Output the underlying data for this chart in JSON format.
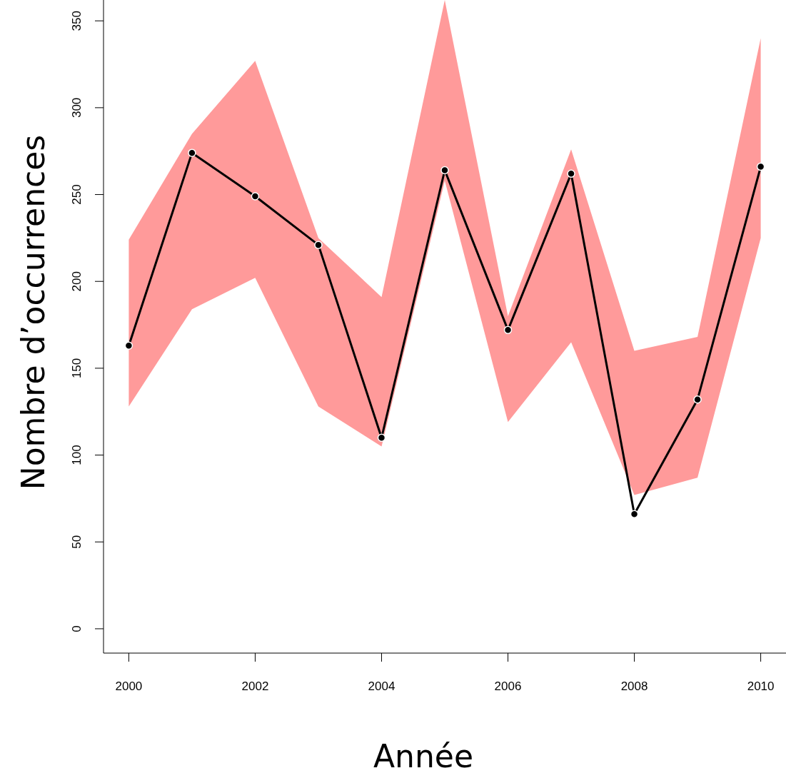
{
  "chart_data": {
    "type": "line",
    "xlabel": "Année",
    "ylabel": "Nombre d’occurrences",
    "x": [
      2000,
      2001,
      2002,
      2003,
      2004,
      2005,
      2006,
      2007,
      2008,
      2009,
      2010
    ],
    "series": [
      {
        "color": "#000000",
        "values": [
          163,
          274,
          249,
          221,
          110,
          264,
          172,
          262,
          66,
          132,
          266
        ],
        "lower": [
          128,
          184,
          202,
          128,
          105,
          258,
          119,
          165,
          77,
          87,
          225
        ],
        "upper": [
          224,
          285,
          327,
          225,
          191,
          362,
          180,
          276,
          160,
          168,
          340
        ]
      }
    ],
    "xlim": [
      1999.6,
      2010.4
    ],
    "ylim": [
      -14,
      362
    ],
    "xticks": [
      2000,
      2002,
      2004,
      2006,
      2008,
      2010
    ],
    "yticks": [
      0,
      50,
      100,
      150,
      200,
      250,
      300,
      350
    ],
    "marker": "circle",
    "line_style": "solid",
    "grid": false
  }
}
